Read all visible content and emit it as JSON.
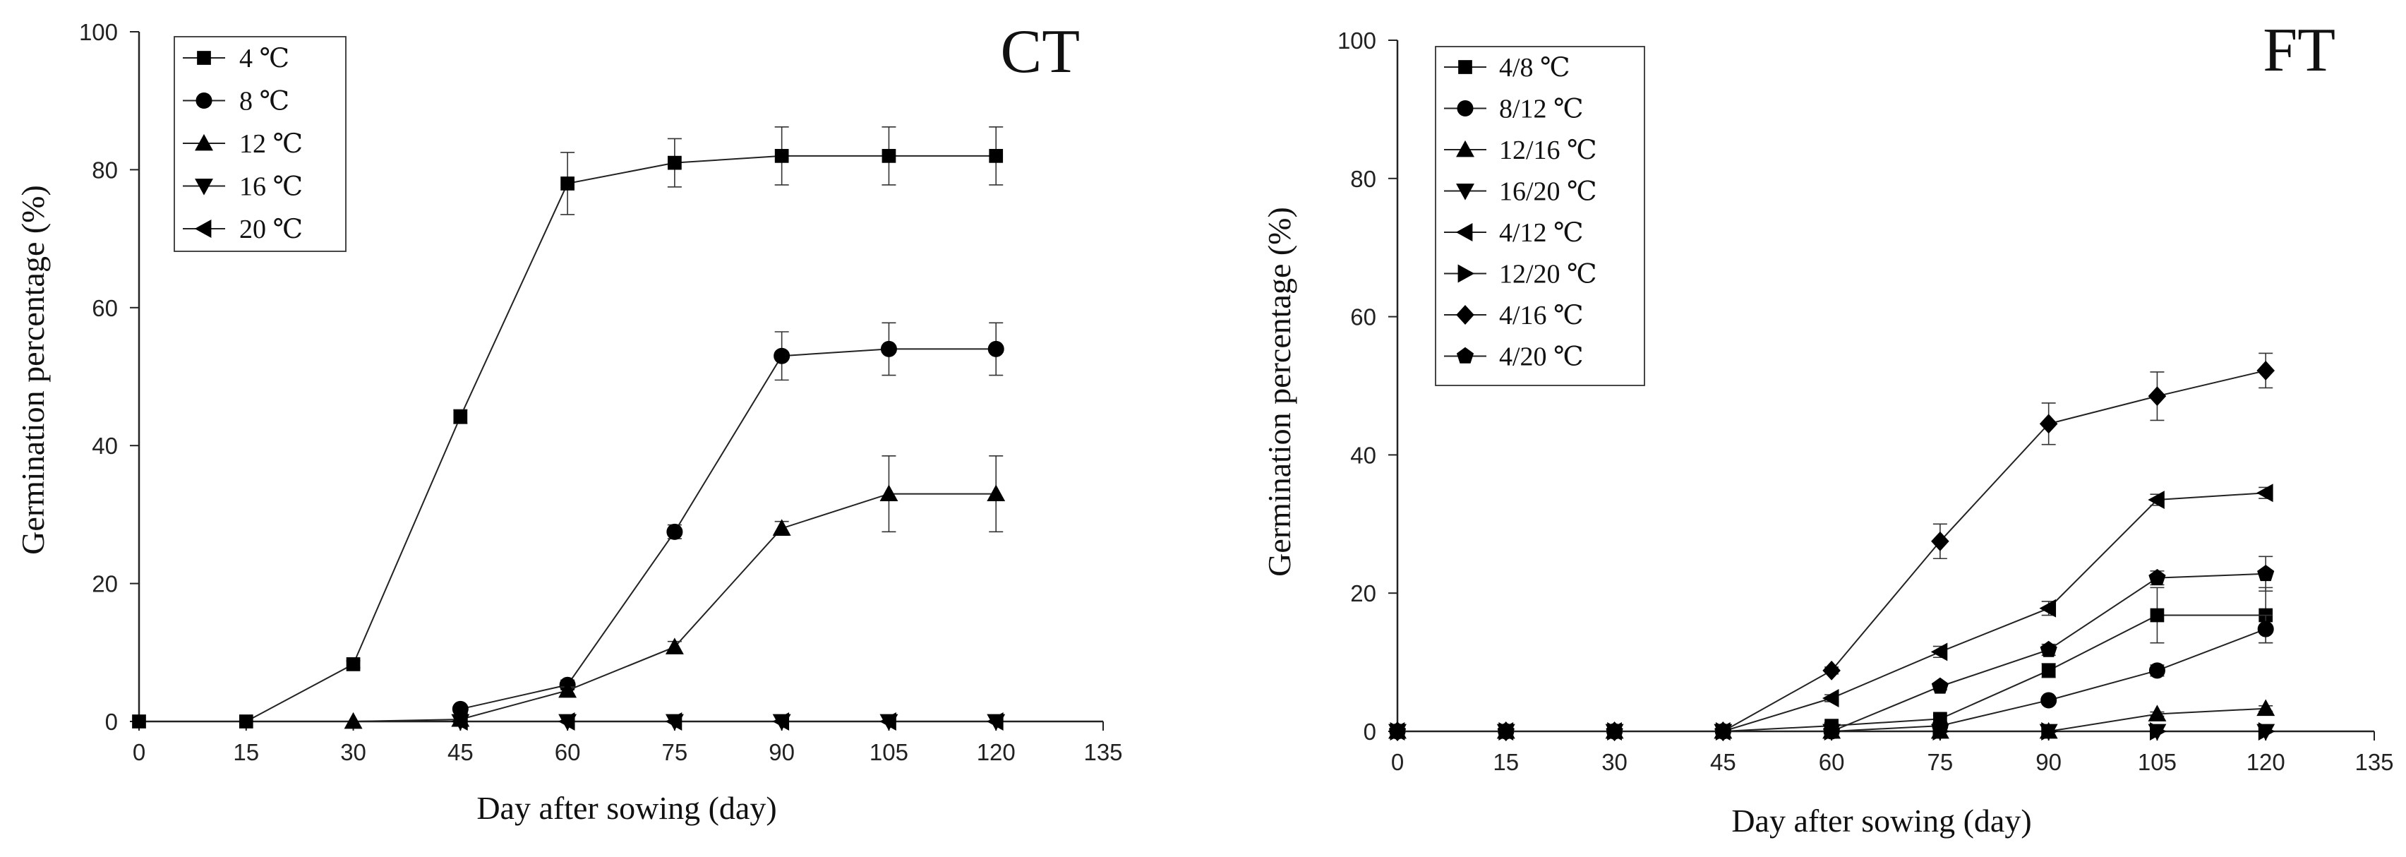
{
  "chart_data": [
    {
      "type": "line",
      "panel_label": "CT",
      "xlabel": "Day after sowing (day)",
      "ylabel": "Germination percentage (%)",
      "xlim": [
        0,
        135
      ],
      "ylim": [
        0,
        100
      ],
      "xticks": [
        0,
        15,
        30,
        45,
        60,
        75,
        90,
        105,
        120,
        135
      ],
      "yticks": [
        0,
        20,
        40,
        60,
        80,
        100
      ],
      "legend_position": "top-left",
      "grid": false,
      "x": [
        0,
        15,
        30,
        45,
        60,
        75,
        90,
        105,
        120
      ],
      "series": [
        {
          "name": "4 ℃",
          "marker": "square",
          "values": [
            0,
            0,
            8.3,
            44.2,
            78,
            81,
            82,
            82,
            82
          ],
          "errors": [
            0,
            0,
            0.5,
            1,
            4.5,
            3.5,
            4.2,
            4.2,
            4.2
          ]
        },
        {
          "name": "8 ℃",
          "marker": "circle",
          "values": [
            null,
            null,
            null,
            1.8,
            5.3,
            27.5,
            53,
            54,
            54
          ],
          "errors": [
            0,
            0,
            0,
            0.4,
            0.7,
            1,
            3.5,
            3.8,
            3.8
          ]
        },
        {
          "name": "12 ℃",
          "marker": "triangle-up",
          "values": [
            null,
            null,
            0,
            0.3,
            4.5,
            10.8,
            28,
            33,
            33
          ],
          "errors": [
            0,
            0,
            0,
            0,
            0.5,
            0.8,
            1,
            5.5,
            5.5
          ]
        },
        {
          "name": "16 ℃",
          "marker": "triangle-down",
          "values": [
            null,
            null,
            null,
            0,
            0,
            0,
            0,
            0,
            0
          ],
          "errors": [
            0,
            0,
            0,
            0,
            0,
            0,
            0,
            0,
            0
          ]
        },
        {
          "name": "20 ℃",
          "marker": "triangle-left",
          "values": [
            null,
            null,
            null,
            0,
            0,
            0,
            0,
            0,
            0
          ],
          "errors": [
            0,
            0,
            0,
            0,
            0,
            0,
            0,
            0,
            0
          ]
        }
      ]
    },
    {
      "type": "line",
      "panel_label": "FT",
      "xlabel": "Day after sowing (day)",
      "ylabel": "Germination percentage (%)",
      "xlim": [
        0,
        135
      ],
      "ylim": [
        0,
        100
      ],
      "xticks": [
        0,
        15,
        30,
        45,
        60,
        75,
        90,
        105,
        120,
        135
      ],
      "yticks": [
        0,
        20,
        40,
        60,
        80,
        100
      ],
      "legend_position": "top-left",
      "grid": false,
      "x": [
        0,
        15,
        30,
        45,
        60,
        75,
        90,
        105,
        120
      ],
      "series": [
        {
          "name": "4/8 ℃",
          "marker": "square",
          "values": [
            0,
            0,
            0,
            0,
            0.8,
            1.8,
            8.8,
            16.8,
            16.8
          ],
          "errors": [
            0,
            0,
            0,
            0,
            0.3,
            0.5,
            1,
            4,
            4
          ]
        },
        {
          "name": "8/12 ℃",
          "marker": "circle",
          "values": [
            0,
            0,
            0,
            0,
            0,
            0.8,
            4.5,
            8.8,
            14.8
          ],
          "errors": [
            0,
            0,
            0,
            0,
            0,
            0.3,
            0.5,
            0.8,
            2
          ]
        },
        {
          "name": "12/16 ℃",
          "marker": "triangle-up",
          "values": [
            0,
            0,
            0,
            0,
            0,
            0,
            0,
            2.5,
            3.3
          ],
          "errors": [
            0,
            0,
            0,
            0,
            0,
            0,
            0,
            0.3,
            0.4
          ]
        },
        {
          "name": "16/20 ℃",
          "marker": "triangle-down",
          "values": [
            0,
            0,
            0,
            0,
            0,
            0,
            0,
            0,
            0
          ],
          "errors": [
            0,
            0,
            0,
            0,
            0,
            0,
            0,
            0,
            0
          ]
        },
        {
          "name": "4/12 ℃",
          "marker": "triangle-left",
          "values": [
            0,
            0,
            0,
            0,
            4.8,
            11.5,
            17.8,
            33.5,
            34.5
          ],
          "errors": [
            0,
            0,
            0,
            0,
            0.5,
            0.8,
            1,
            0.8,
            0.8
          ]
        },
        {
          "name": "12/20 ℃",
          "marker": "triangle-right",
          "values": [
            0,
            0,
            0,
            0,
            0,
            0,
            0,
            0,
            0
          ],
          "errors": [
            0,
            0,
            0,
            0,
            0,
            0,
            0,
            0,
            0
          ]
        },
        {
          "name": "4/16 ℃",
          "marker": "diamond",
          "values": [
            0,
            0,
            0,
            0,
            8.8,
            27.5,
            44.5,
            48.5,
            52.2
          ],
          "errors": [
            0,
            0,
            0,
            0,
            0.5,
            2.5,
            3,
            3.5,
            2.5
          ]
        },
        {
          "name": "4/20 ℃",
          "marker": "pentagon",
          "values": [
            0,
            0,
            0,
            0,
            0,
            6.5,
            11.8,
            22.2,
            22.8
          ],
          "errors": [
            0,
            0,
            0,
            0,
            0,
            0.5,
            0.8,
            1,
            2.5
          ]
        }
      ]
    }
  ]
}
